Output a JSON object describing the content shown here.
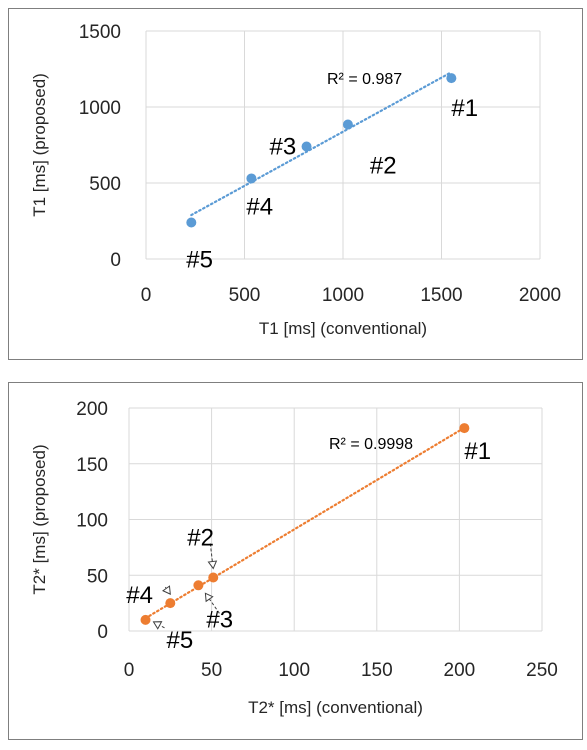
{
  "chart_data": [
    {
      "type": "scatter",
      "title": "",
      "xlabel": "T1 [ms] (conventional)",
      "ylabel": "T1 [ms] (proposed)",
      "xlim": [
        0,
        2000
      ],
      "ylim": [
        0,
        1500
      ],
      "xticks": [
        0,
        500,
        1000,
        1500,
        2000
      ],
      "yticks": [
        0,
        500,
        1000,
        1500
      ],
      "xtick_labels": [
        "0",
        "500",
        "1000",
        "1500",
        "2000"
      ],
      "ytick_labels": [
        "0",
        "500",
        "1000",
        "1500"
      ],
      "grid": true,
      "marker_color": "#5b9bd5",
      "trendline": {
        "style": "dotted",
        "color": "#5b9bd5",
        "x_range": [
          230,
          1550
        ],
        "r_squared_label": "R² = 0.987"
      },
      "points": [
        {
          "x": 1550,
          "y": 1190,
          "label": "#1"
        },
        {
          "x": 1025,
          "y": 885,
          "label": "#2"
        },
        {
          "x": 815,
          "y": 740,
          "label": "#3"
        },
        {
          "x": 535,
          "y": 530,
          "label": "#4"
        },
        {
          "x": 230,
          "y": 240,
          "label": "#5"
        }
      ]
    },
    {
      "type": "scatter",
      "title": "",
      "xlabel": "T2* [ms] (conventional)",
      "ylabel": "T2* [ms] (proposed)",
      "xlim": [
        0,
        250
      ],
      "ylim": [
        0,
        200
      ],
      "xticks": [
        0,
        50,
        100,
        150,
        200,
        250
      ],
      "yticks": [
        0,
        50,
        100,
        150,
        200
      ],
      "xtick_labels": [
        "0",
        "50",
        "100",
        "150",
        "200",
        "250"
      ],
      "ytick_labels": [
        "0",
        "50",
        "100",
        "150",
        "200"
      ],
      "grid": true,
      "marker_color": "#ed7d31",
      "trendline": {
        "style": "dotted",
        "color": "#ed7d31",
        "x_range": [
          10,
          203
        ],
        "r_squared_label": "R² = 0.9998"
      },
      "points": [
        {
          "x": 203,
          "y": 182,
          "label": "#1"
        },
        {
          "x": 51,
          "y": 48,
          "label": "#2"
        },
        {
          "x": 42,
          "y": 41,
          "label": "#3"
        },
        {
          "x": 25,
          "y": 25,
          "label": "#4"
        },
        {
          "x": 10,
          "y": 10,
          "label": "#5"
        }
      ]
    }
  ]
}
